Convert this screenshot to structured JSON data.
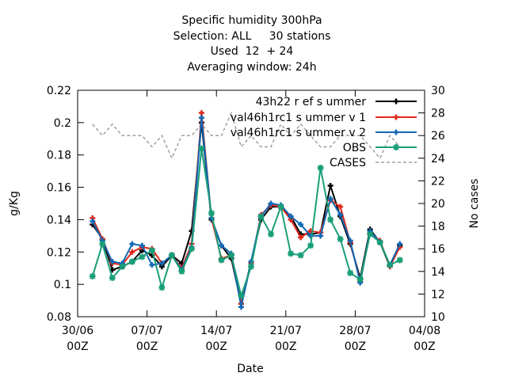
{
  "chart_data": {
    "type": "line",
    "title_lines": [
      "Specific humidity 300hPa",
      "Selection: ALL     30 stations",
      "Used  12  + 24",
      "Averaging window: 24h"
    ],
    "xlabel": "Date",
    "ylabel": "g/Kg",
    "y2label": "No cases",
    "x_ticks": [
      {
        "label": "30/06",
        "sub": "00Z",
        "t": 0
      },
      {
        "label": "07/07",
        "sub": "00Z",
        "t": 7
      },
      {
        "label": "14/07",
        "sub": "00Z",
        "t": 14
      },
      {
        "label": "21/07",
        "sub": "00Z",
        "t": 21
      },
      {
        "label": "28/07",
        "sub": "00Z",
        "t": 28
      },
      {
        "label": "04/08",
        "sub": "00Z",
        "t": 35
      }
    ],
    "xlim": [
      0,
      35
    ],
    "ylim": [
      0.08,
      0.22
    ],
    "y_ticks": [
      "0.08",
      "0.1",
      "0.12",
      "0.14",
      "0.16",
      "0.18",
      "0.2",
      "0.22"
    ],
    "y2lim": [
      10,
      30
    ],
    "y2_ticks": [
      "10",
      "12",
      "14",
      "16",
      "18",
      "20",
      "22",
      "24",
      "26",
      "28",
      "30"
    ],
    "legend_position": "top-right",
    "series": [
      {
        "name": "43h22_ref_summer",
        "legend_label": "43h22 r ef s ummer",
        "color": "#000000",
        "marker": "plus",
        "x": [
          1.5,
          2.5,
          3.5,
          4.5,
          5.5,
          6.5,
          7.5,
          8.5,
          9.5,
          10.5,
          11.5,
          12.5,
          13.5,
          14.5,
          15.5,
          16.5,
          17.5,
          18.5,
          19.5,
          20.5,
          21.5,
          22.5,
          23.5,
          24.5,
          25.5,
          26.5,
          27.5,
          28.5,
          29.5,
          30.5,
          31.5,
          32.5
        ],
        "values": [
          0.137,
          0.128,
          0.109,
          0.111,
          0.114,
          0.121,
          0.118,
          0.111,
          0.118,
          0.113,
          0.133,
          0.2,
          0.14,
          0.124,
          0.116,
          0.088,
          0.114,
          0.14,
          0.148,
          0.148,
          0.142,
          0.131,
          0.131,
          0.132,
          0.161,
          0.142,
          0.125,
          0.104,
          0.134,
          0.126,
          0.111,
          0.124
        ]
      },
      {
        "name": "val46h1rc1_summer_v1",
        "legend_label": "val46h1rc1 s ummer v 1",
        "color": "#e0281a",
        "marker": "plus",
        "x": [
          1.5,
          2.5,
          3.5,
          4.5,
          5.5,
          6.5,
          7.5,
          8.5,
          9.5,
          10.5,
          11.5,
          12.5,
          13.5,
          14.5,
          15.5,
          16.5,
          17.5,
          18.5,
          19.5,
          20.5,
          21.5,
          22.5,
          23.5,
          24.5,
          25.5,
          26.5,
          27.5,
          28.5,
          29.5,
          30.5,
          31.5,
          32.5
        ],
        "values": [
          0.141,
          0.128,
          0.113,
          0.112,
          0.12,
          0.123,
          0.122,
          0.113,
          0.118,
          0.11,
          0.125,
          0.206,
          0.141,
          0.116,
          0.118,
          0.088,
          0.113,
          0.143,
          0.149,
          0.148,
          0.14,
          0.129,
          0.133,
          0.132,
          0.152,
          0.148,
          0.126,
          0.102,
          0.132,
          0.127,
          0.111,
          0.123
        ]
      },
      {
        "name": "val46h1rc1_summer_v2",
        "legend_label": "val46h1rc1 s ummer v 2",
        "color": "#1068b4",
        "marker": "plus",
        "x": [
          1.5,
          2.5,
          3.5,
          4.5,
          5.5,
          6.5,
          7.5,
          8.5,
          9.5,
          10.5,
          11.5,
          12.5,
          13.5,
          14.5,
          15.5,
          16.5,
          17.5,
          18.5,
          19.5,
          20.5,
          21.5,
          22.5,
          23.5,
          24.5,
          25.5,
          26.5,
          27.5,
          28.5,
          29.5,
          30.5,
          31.5,
          32.5
        ],
        "values": [
          0.139,
          0.127,
          0.114,
          0.113,
          0.125,
          0.124,
          0.112,
          0.113,
          0.118,
          0.109,
          0.123,
          0.203,
          0.141,
          0.124,
          0.119,
          0.086,
          0.114,
          0.142,
          0.15,
          0.149,
          0.142,
          0.137,
          0.13,
          0.13,
          0.153,
          0.143,
          0.127,
          0.101,
          0.133,
          0.126,
          0.112,
          0.125
        ]
      },
      {
        "name": "OBS",
        "legend_label": "OBS",
        "color": "#189e78",
        "marker": "star",
        "x": [
          1.5,
          2.5,
          3.5,
          4.5,
          5.5,
          6.5,
          7.5,
          8.5,
          9.5,
          10.5,
          11.5,
          12.5,
          13.5,
          14.5,
          15.5,
          16.5,
          17.5,
          18.5,
          19.5,
          20.5,
          21.5,
          22.5,
          23.5,
          24.5,
          25.5,
          26.5,
          27.5,
          28.5,
          29.5,
          30.5,
          31.5,
          32.5
        ],
        "values": [
          0.105,
          0.125,
          0.104,
          0.111,
          0.114,
          0.117,
          0.121,
          0.098,
          0.118,
          0.108,
          0.122,
          0.184,
          0.144,
          0.115,
          0.118,
          0.093,
          0.111,
          0.142,
          0.131,
          0.148,
          0.119,
          0.118,
          0.124,
          0.172,
          0.14,
          0.128,
          0.107,
          0.103,
          0.131,
          0.126,
          0.112,
          0.115
        ]
      },
      {
        "name": "CASES",
        "legend_label": "CASES",
        "color": "#a0a0a0",
        "axis": "y2",
        "dashed": true,
        "x": [
          1.5,
          2.5,
          3.5,
          4.5,
          5.5,
          6.5,
          7.5,
          8.5,
          9.5,
          10.5,
          11.5,
          12.5,
          13.5,
          14.5,
          15.5,
          16.5,
          17.5,
          18.5,
          19.5,
          20.5,
          21.5,
          22.5,
          23.5,
          24.5,
          25.5,
          26.5,
          27.5,
          28.5,
          29.5,
          30.5,
          31.5,
          32.5
        ],
        "values": [
          27,
          26,
          27,
          26,
          26,
          26,
          25,
          26,
          24,
          26,
          26,
          27,
          26,
          26,
          28,
          25,
          26,
          25,
          25,
          27,
          26,
          27,
          26,
          25,
          25,
          26,
          26,
          26,
          25,
          24,
          26,
          25
        ]
      }
    ]
  }
}
